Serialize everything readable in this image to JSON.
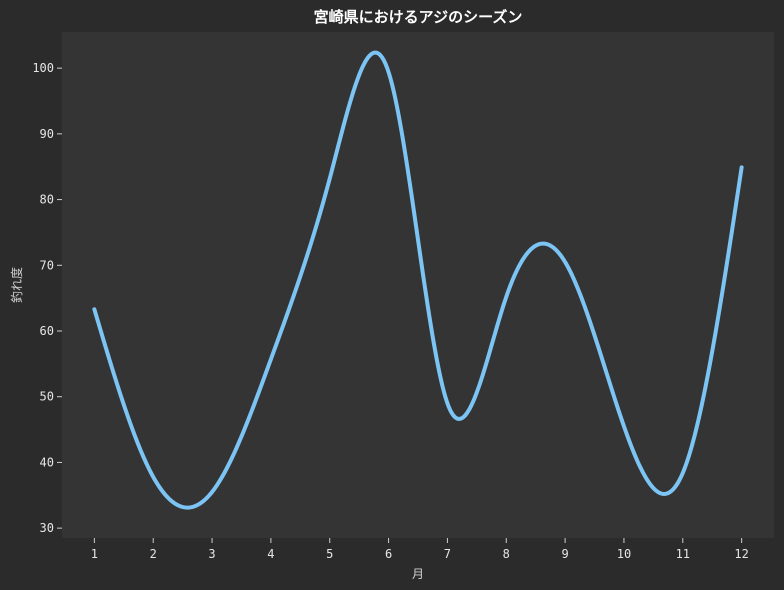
{
  "chart_data": {
    "type": "line",
    "title": "宮崎県におけるアジのシーズン",
    "xlabel": "月",
    "ylabel": "釣れ度",
    "x": [
      1,
      2,
      3,
      4,
      5,
      6,
      7,
      8,
      9,
      10,
      11,
      12
    ],
    "x_ticks": [
      "1",
      "2",
      "3",
      "4",
      "5",
      "6",
      "7",
      "8",
      "9",
      "10",
      "11",
      "12"
    ],
    "y_ticks": [
      "30",
      "40",
      "50",
      "60",
      "70",
      "80",
      "90",
      "100"
    ],
    "xlim": [
      0.45,
      12.55
    ],
    "ylim": [
      28.5,
      105.5
    ],
    "grid": false,
    "series": [
      {
        "values": [
          63.3,
          37.8,
          35.5,
          55.7,
          83.2,
          99.4,
          49.0,
          65.2,
          70.5,
          45.5,
          38.4,
          84.9
        ],
        "color": "#7cc4f4",
        "smooth": true
      }
    ],
    "colors": {
      "figure_background": "#2b2b2b",
      "plot_background": "#343434",
      "text": "#ffffff"
    }
  }
}
